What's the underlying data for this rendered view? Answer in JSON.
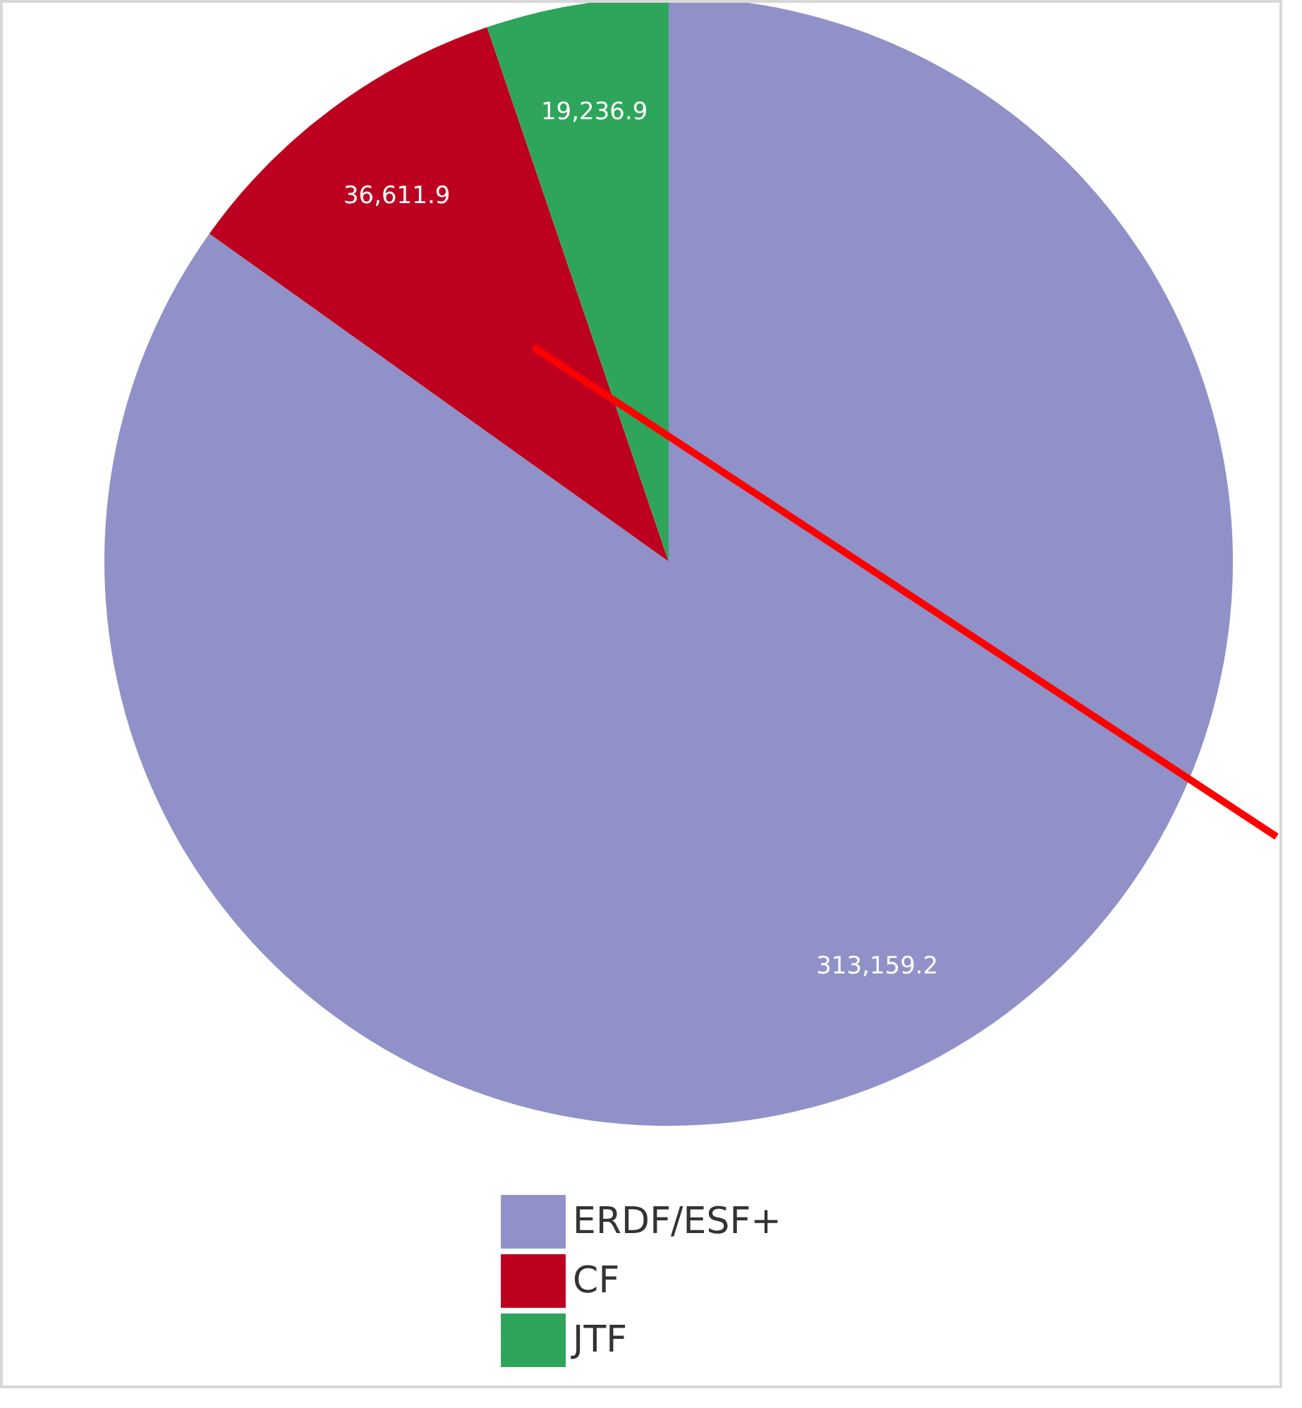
{
  "chart_data": {
    "type": "pie",
    "categories": [
      "ERDF/ESF+",
      "CF",
      "JTF"
    ],
    "values": [
      313159.2,
      36611.9,
      19236.9
    ],
    "colors": [
      "#8f91c8",
      "#bd0020",
      "#2ea55a"
    ],
    "value_labels": [
      "313,159.2",
      "36,611.9",
      "19,236.9"
    ],
    "legend": "bottom"
  }
}
